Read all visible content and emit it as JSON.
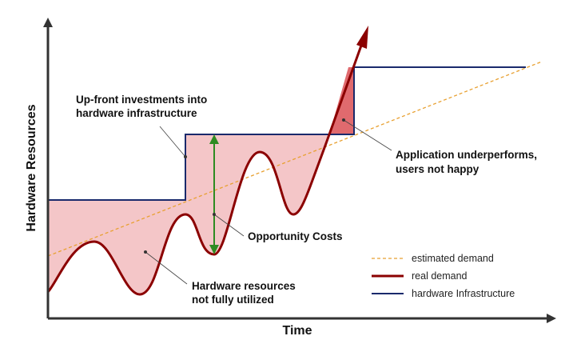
{
  "axes": {
    "x_label": "Time",
    "y_label": "Hardware Resources"
  },
  "annotations": {
    "upfront": [
      "Up-front investments into",
      "hardware infrastructure"
    ],
    "underperforms": [
      "Application underperforms,",
      "users not happy"
    ],
    "opportunity": "Opportunity Costs",
    "not_utilized": [
      "Hardware resources",
      "not fully utilized"
    ]
  },
  "legend": {
    "estimated": "estimated demand",
    "real": "real demand",
    "hardware": "hardware Infrastructure"
  },
  "colors": {
    "estimated": "#E8A030",
    "real": "#8B0000",
    "hardware": "#1A2A6C",
    "overcapacity_fill": "#F4C6C8",
    "undercapacity_fill": "#E06A6E",
    "opportunity_arrow": "#2E8B22"
  }
}
